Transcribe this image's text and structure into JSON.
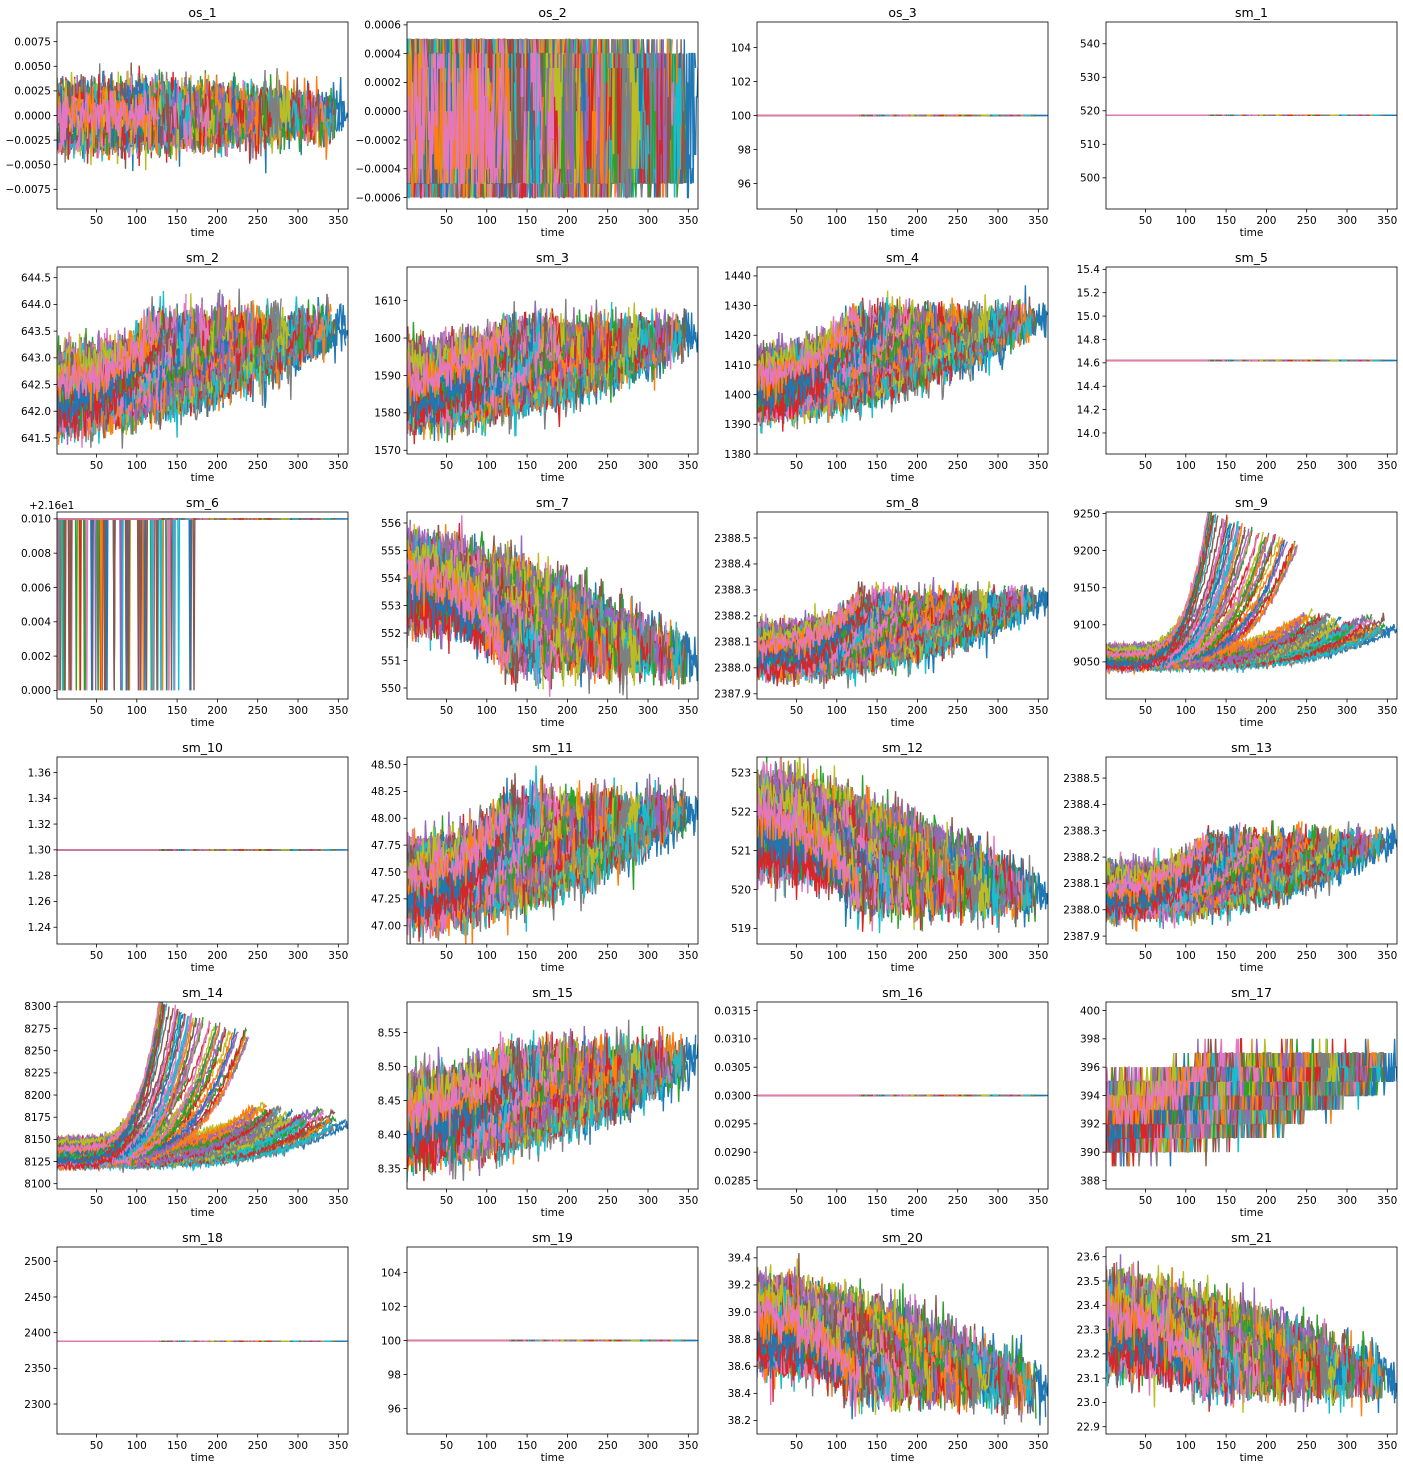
{
  "figure": {
    "palette": [
      "#1f77b4",
      "#ff7f0e",
      "#2ca02c",
      "#d62728",
      "#9467bd",
      "#8c564b",
      "#e377c2",
      "#7f7f7f",
      "#bcbd22",
      "#17becf"
    ]
  },
  "chart_data": [
    {
      "id": "os_1",
      "type": "line",
      "title": "os_1",
      "xlabel": "time",
      "xlim": [
        1,
        362
      ],
      "ylim": [
        -0.0095,
        0.0095
      ],
      "yticks": [
        -0.0075,
        -0.005,
        -0.0025,
        0,
        0.0025,
        0.005,
        0.0075
      ],
      "ytick_labels": [
        "−0.0075",
        "−0.0050",
        "−0.0025",
        "0.0000",
        "0.0025",
        "0.0050",
        "0.0075"
      ],
      "offset_text": "",
      "pattern": "noise",
      "start_low": 0,
      "start_high": 0,
      "end_value": 0,
      "noise": 0.0028,
      "n_series": 100,
      "max_len": 362,
      "min_len": 128
    },
    {
      "id": "os_2",
      "type": "line",
      "title": "os_2",
      "xlabel": "time",
      "xlim": [
        1,
        362
      ],
      "ylim": [
        -0.00068,
        0.00062
      ],
      "yticks": [
        -0.0006,
        -0.0004,
        -0.0002,
        0,
        0.0002,
        0.0004,
        0.0006
      ],
      "ytick_labels": [
        "−0.0006",
        "−0.0004",
        "−0.0002",
        "0.0000",
        "0.0002",
        "0.0004",
        "0.0006"
      ],
      "offset_text": "",
      "pattern": "discrete",
      "levels": [
        -0.0006,
        -0.0005,
        -0.0004,
        -0.0003,
        -0.0002,
        -0.0001,
        0,
        0.0001,
        0.0002,
        0.0003,
        0.0004,
        0.0005,
        0.0006
      ],
      "weights": [
        0.03,
        0.2,
        0.14,
        0.07,
        0.06,
        0.06,
        0.07,
        0.06,
        0.06,
        0.07,
        0.14,
        0.2,
        0.03
      ],
      "start_low": 0,
      "start_high": 0,
      "end_value": 0,
      "n_series": 100,
      "max_len": 362,
      "min_len": 128
    },
    {
      "id": "os_3",
      "type": "line",
      "title": "os_3",
      "xlabel": "time",
      "xlim": [
        1,
        362
      ],
      "ylim": [
        94.5,
        105.5
      ],
      "yticks": [
        96,
        98,
        100,
        102,
        104
      ],
      "ytick_labels": [
        "96",
        "98",
        "100",
        "102",
        "104"
      ],
      "offset_text": "",
      "pattern": "constant",
      "value": 100,
      "n_series": 100,
      "max_len": 362,
      "min_len": 128
    },
    {
      "id": "sm_1",
      "type": "line",
      "title": "sm_1",
      "xlabel": "time",
      "xlim": [
        1,
        362
      ],
      "ylim": [
        490.7,
        546.5
      ],
      "yticks": [
        500,
        510,
        520,
        530,
        540
      ],
      "ytick_labels": [
        "500",
        "510",
        "520",
        "530",
        "540"
      ],
      "offset_text": "",
      "pattern": "constant",
      "value": 518.67,
      "n_series": 100,
      "max_len": 362,
      "min_len": 128
    },
    {
      "id": "sm_2",
      "type": "line",
      "title": "sm_2",
      "xlabel": "time",
      "xlim": [
        1,
        362
      ],
      "ylim": [
        641.2,
        644.7
      ],
      "yticks": [
        641.5,
        642,
        642.5,
        643,
        643.5,
        644,
        644.5
      ],
      "ytick_labels": [
        "641.5",
        "642.0",
        "642.5",
        "643.0",
        "643.5",
        "644.0",
        "644.5"
      ],
      "offset_text": "",
      "pattern": "drift",
      "start_low": 641.9,
      "start_high": 642.9,
      "end_value": 643.6,
      "noise": 0.45,
      "n_series": 100,
      "max_len": 362,
      "min_len": 128
    },
    {
      "id": "sm_3",
      "type": "line",
      "title": "sm_3",
      "xlabel": "time",
      "xlim": [
        1,
        362
      ],
      "ylim": [
        1569,
        1619
      ],
      "yticks": [
        1570,
        1580,
        1590,
        1600,
        1610
      ],
      "ytick_labels": [
        "1570",
        "1580",
        "1590",
        "1600",
        "1610"
      ],
      "offset_text": "",
      "pattern": "drift",
      "start_low": 1580,
      "start_high": 1595,
      "end_value": 1601,
      "noise": 6.5,
      "n_series": 100,
      "max_len": 362,
      "min_len": 128
    },
    {
      "id": "sm_4",
      "type": "line",
      "title": "sm_4",
      "xlabel": "time",
      "xlim": [
        1,
        362
      ],
      "ylim": [
        1380,
        1443
      ],
      "yticks": [
        1380,
        1390,
        1400,
        1410,
        1420,
        1430,
        1440
      ],
      "ytick_labels": [
        "1380",
        "1390",
        "1400",
        "1410",
        "1420",
        "1430",
        "1440"
      ],
      "offset_text": "",
      "pattern": "drift",
      "start_low": 1396,
      "start_high": 1412,
      "end_value": 1426,
      "noise": 6.5,
      "n_series": 100,
      "max_len": 362,
      "min_len": 128
    },
    {
      "id": "sm_5",
      "type": "line",
      "title": "sm_5",
      "xlabel": "time",
      "xlim": [
        1,
        362
      ],
      "ylim": [
        13.82,
        15.42
      ],
      "yticks": [
        14.0,
        14.2,
        14.4,
        14.6,
        14.8,
        15.0,
        15.2,
        15.4
      ],
      "ytick_labels": [
        "14.0",
        "14.2",
        "14.4",
        "14.6",
        "14.8",
        "15.0",
        "15.2",
        "15.4"
      ],
      "offset_text": "",
      "pattern": "constant",
      "value": 14.62,
      "n_series": 100,
      "max_len": 362,
      "min_len": 128
    },
    {
      "id": "sm_6",
      "type": "line",
      "title": "sm_6",
      "xlabel": "time",
      "xlim": [
        1,
        362
      ],
      "ylim": [
        -0.0005,
        0.0104
      ],
      "yticks": [
        0,
        0.002,
        0.004,
        0.006,
        0.008,
        0.01
      ],
      "ytick_labels": [
        "0.000",
        "0.002",
        "0.004",
        "0.006",
        "0.008",
        "0.010"
      ],
      "offset_text": "+2.16e1",
      "pattern": "spikes",
      "value": 0.01,
      "low": 0,
      "n_series": 100,
      "max_len": 362,
      "min_len": 128
    },
    {
      "id": "sm_7",
      "type": "line",
      "title": "sm_7",
      "xlabel": "time",
      "xlim": [
        1,
        362
      ],
      "ylim": [
        549.6,
        556.4
      ],
      "yticks": [
        550,
        551,
        552,
        553,
        554,
        555,
        556
      ],
      "ytick_labels": [
        "550",
        "551",
        "552",
        "553",
        "554",
        "555",
        "556"
      ],
      "offset_text": "",
      "pattern": "drift",
      "start_low": 552.8,
      "start_high": 555.0,
      "end_value": 551.0,
      "noise": 0.95,
      "n_series": 100,
      "max_len": 362,
      "min_len": 128
    },
    {
      "id": "sm_8",
      "type": "line",
      "title": "sm_8",
      "xlabel": "time",
      "xlim": [
        1,
        362
      ],
      "ylim": [
        2387.88,
        2388.6
      ],
      "yticks": [
        2387.9,
        2388.0,
        2388.1,
        2388.2,
        2388.3,
        2388.4,
        2388.5
      ],
      "ytick_labels": [
        "2387.9",
        "2388.0",
        "2388.1",
        "2388.2",
        "2388.3",
        "2388.4",
        "2388.5"
      ],
      "offset_text": "",
      "pattern": "expo",
      "start_low": 2388.0,
      "start_high": 2388.14,
      "end_value": 2388.27,
      "noise": 0.055,
      "n_series": 100,
      "max_len": 362,
      "min_len": 128
    },
    {
      "id": "sm_9",
      "type": "line",
      "title": "sm_9",
      "xlabel": "time",
      "xlim": [
        1,
        362
      ],
      "ylim": [
        9000,
        9252
      ],
      "yticks": [
        9050,
        9100,
        9150,
        9200,
        9250
      ],
      "ytick_labels": [
        "9050",
        "9100",
        "9150",
        "9200",
        "9250"
      ],
      "offset_text": "",
      "pattern": "fan",
      "start_low": 9042,
      "start_high": 9070,
      "end_value": 9230,
      "noise": 6,
      "n_series": 100,
      "max_len": 362,
      "min_len": 128
    },
    {
      "id": "sm_10",
      "type": "line",
      "title": "sm_10",
      "xlabel": "time",
      "xlim": [
        1,
        362
      ],
      "ylim": [
        1.227,
        1.372
      ],
      "yticks": [
        1.24,
        1.26,
        1.28,
        1.3,
        1.32,
        1.34,
        1.36
      ],
      "ytick_labels": [
        "1.24",
        "1.26",
        "1.28",
        "1.30",
        "1.32",
        "1.34",
        "1.36"
      ],
      "offset_text": "",
      "pattern": "constant",
      "value": 1.3,
      "n_series": 100,
      "max_len": 362,
      "min_len": 128
    },
    {
      "id": "sm_11",
      "type": "line",
      "title": "sm_11",
      "xlabel": "time",
      "xlim": [
        1,
        362
      ],
      "ylim": [
        46.83,
        48.57
      ],
      "yticks": [
        47.0,
        47.25,
        47.5,
        47.75,
        48.0,
        48.25,
        48.5
      ],
      "ytick_labels": [
        "47.00",
        "47.25",
        "47.50",
        "47.75",
        "48.00",
        "48.25",
        "48.50"
      ],
      "offset_text": "",
      "pattern": "drift",
      "start_low": 47.15,
      "start_high": 47.65,
      "end_value": 48.1,
      "noise": 0.24,
      "n_series": 100,
      "max_len": 362,
      "min_len": 128
    },
    {
      "id": "sm_12",
      "type": "line",
      "title": "sm_12",
      "xlabel": "time",
      "xlim": [
        1,
        362
      ],
      "ylim": [
        518.6,
        523.4
      ],
      "yticks": [
        519,
        520,
        521,
        522,
        523
      ],
      "ytick_labels": [
        "519",
        "520",
        "521",
        "522",
        "523"
      ],
      "offset_text": "",
      "pattern": "drift",
      "start_low": 520.8,
      "start_high": 522.6,
      "end_value": 519.8,
      "noise": 0.7,
      "n_series": 100,
      "max_len": 362,
      "min_len": 128
    },
    {
      "id": "sm_13",
      "type": "line",
      "title": "sm_13",
      "xlabel": "time",
      "xlim": [
        1,
        362
      ],
      "ylim": [
        2387.87,
        2388.58
      ],
      "yticks": [
        2387.9,
        2388.0,
        2388.1,
        2388.2,
        2388.3,
        2388.4,
        2388.5
      ],
      "ytick_labels": [
        "2387.9",
        "2388.0",
        "2388.1",
        "2388.2",
        "2388.3",
        "2388.4",
        "2388.5"
      ],
      "offset_text": "",
      "pattern": "expo",
      "start_low": 2388.0,
      "start_high": 2388.14,
      "end_value": 2388.27,
      "noise": 0.055,
      "n_series": 100,
      "max_len": 362,
      "min_len": 128
    },
    {
      "id": "sm_14",
      "type": "line",
      "title": "sm_14",
      "xlabel": "time",
      "xlim": [
        1,
        362
      ],
      "ylim": [
        8094,
        8305
      ],
      "yticks": [
        8100,
        8125,
        8150,
        8175,
        8200,
        8225,
        8250,
        8275,
        8300
      ],
      "ytick_labels": [
        "8100",
        "8125",
        "8150",
        "8175",
        "8200",
        "8225",
        "8250",
        "8275",
        "8300"
      ],
      "offset_text": "",
      "pattern": "fan",
      "start_low": 8120,
      "start_high": 8150,
      "end_value": 8285,
      "noise": 5,
      "n_series": 100,
      "max_len": 362,
      "min_len": 128
    },
    {
      "id": "sm_15",
      "type": "line",
      "title": "sm_15",
      "xlabel": "time",
      "xlim": [
        1,
        362
      ],
      "ylim": [
        8.32,
        8.595
      ],
      "yticks": [
        8.35,
        8.4,
        8.45,
        8.5,
        8.55
      ],
      "ytick_labels": [
        "8.35",
        "8.40",
        "8.45",
        "8.50",
        "8.55"
      ],
      "offset_text": "",
      "pattern": "drift",
      "start_low": 8.38,
      "start_high": 8.47,
      "end_value": 8.51,
      "noise": 0.038,
      "n_series": 100,
      "max_len": 362,
      "min_len": 128
    },
    {
      "id": "sm_16",
      "type": "line",
      "title": "sm_16",
      "xlabel": "time",
      "xlim": [
        1,
        362
      ],
      "ylim": [
        0.02835,
        0.03165
      ],
      "yticks": [
        0.0285,
        0.029,
        0.0295,
        0.03,
        0.0305,
        0.031,
        0.0315
      ],
      "ytick_labels": [
        "0.0285",
        "0.0290",
        "0.0295",
        "0.0300",
        "0.0305",
        "0.0310",
        "0.0315"
      ],
      "offset_text": "",
      "pattern": "constant",
      "value": 0.03,
      "n_series": 100,
      "max_len": 362,
      "min_len": 128
    },
    {
      "id": "sm_17",
      "type": "line",
      "title": "sm_17",
      "xlabel": "time",
      "xlim": [
        1,
        362
      ],
      "ylim": [
        387.4,
        400.6
      ],
      "yticks": [
        388,
        390,
        392,
        394,
        396,
        398,
        400
      ],
      "ytick_labels": [
        "388",
        "390",
        "392",
        "394",
        "396",
        "398",
        "400"
      ],
      "offset_text": "",
      "pattern": "discrete_drift",
      "start_low": 391,
      "start_high": 394,
      "end_value": 396,
      "step": 1,
      "noise": 1.6,
      "n_series": 100,
      "max_len": 362,
      "min_len": 128
    },
    {
      "id": "sm_18",
      "type": "line",
      "title": "sm_18",
      "xlabel": "time",
      "xlim": [
        1,
        362
      ],
      "ylim": [
        2258,
        2520
      ],
      "yticks": [
        2300,
        2350,
        2400,
        2450,
        2500
      ],
      "ytick_labels": [
        "2300",
        "2350",
        "2400",
        "2450",
        "2500"
      ],
      "offset_text": "",
      "pattern": "constant",
      "value": 2388,
      "n_series": 100,
      "max_len": 362,
      "min_len": 128
    },
    {
      "id": "sm_19",
      "type": "line",
      "title": "sm_19",
      "xlabel": "time",
      "xlim": [
        1,
        362
      ],
      "ylim": [
        94.5,
        105.5
      ],
      "yticks": [
        96,
        98,
        100,
        102,
        104
      ],
      "ytick_labels": [
        "96",
        "98",
        "100",
        "102",
        "104"
      ],
      "offset_text": "",
      "pattern": "constant",
      "value": 100,
      "n_series": 100,
      "max_len": 362,
      "min_len": 128
    },
    {
      "id": "sm_20",
      "type": "line",
      "title": "sm_20",
      "xlabel": "time",
      "xlim": [
        1,
        362
      ],
      "ylim": [
        38.1,
        39.48
      ],
      "yticks": [
        38.2,
        38.4,
        38.6,
        38.8,
        39.0,
        39.2,
        39.4
      ],
      "ytick_labels": [
        "38.2",
        "38.4",
        "38.6",
        "38.8",
        "39.0",
        "39.2",
        "39.4"
      ],
      "offset_text": "",
      "pattern": "drift",
      "start_low": 38.7,
      "start_high": 39.15,
      "end_value": 38.45,
      "noise": 0.19,
      "n_series": 100,
      "max_len": 362,
      "min_len": 128
    },
    {
      "id": "sm_21",
      "type": "line",
      "title": "sm_21",
      "xlabel": "time",
      "xlim": [
        1,
        362
      ],
      "ylim": [
        22.87,
        23.64
      ],
      "yticks": [
        22.9,
        23.0,
        23.1,
        23.2,
        23.3,
        23.4,
        23.5,
        23.6
      ],
      "ytick_labels": [
        "22.9",
        "23.0",
        "23.1",
        "23.2",
        "23.3",
        "23.4",
        "23.5",
        "23.6"
      ],
      "offset_text": "",
      "pattern": "drift",
      "start_low": 23.2,
      "start_high": 23.45,
      "end_value": 23.1,
      "noise": 0.11,
      "n_series": 100,
      "max_len": 362,
      "min_len": 128
    }
  ],
  "shared_xticks": [
    50,
    100,
    150,
    200,
    250,
    300,
    350
  ],
  "shared_xtick_labels": [
    "50",
    "100",
    "150",
    "200",
    "250",
    "300",
    "350"
  ]
}
